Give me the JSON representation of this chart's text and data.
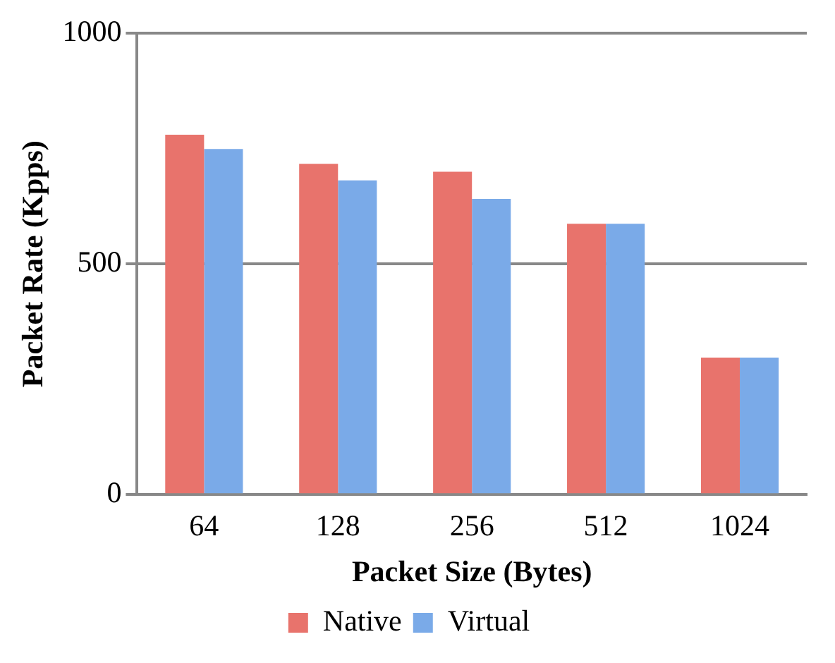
{
  "chart_data": {
    "type": "bar",
    "xlabel": "Packet Size (Bytes)",
    "ylabel": "Packet Rate (Kpps)",
    "categories": [
      "64",
      "128",
      "256",
      "512",
      "1024"
    ],
    "series": [
      {
        "name": "Native",
        "color": "#e8736c",
        "values": [
          780,
          717,
          700,
          587,
          297
        ]
      },
      {
        "name": "Virtual",
        "color": "#7aaae8",
        "values": [
          749,
          681,
          641,
          587,
          297
        ]
      }
    ],
    "ylim": [
      0,
      1000
    ],
    "yticks": [
      0,
      500,
      1000
    ],
    "grid": "y",
    "legend": "bottom"
  }
}
